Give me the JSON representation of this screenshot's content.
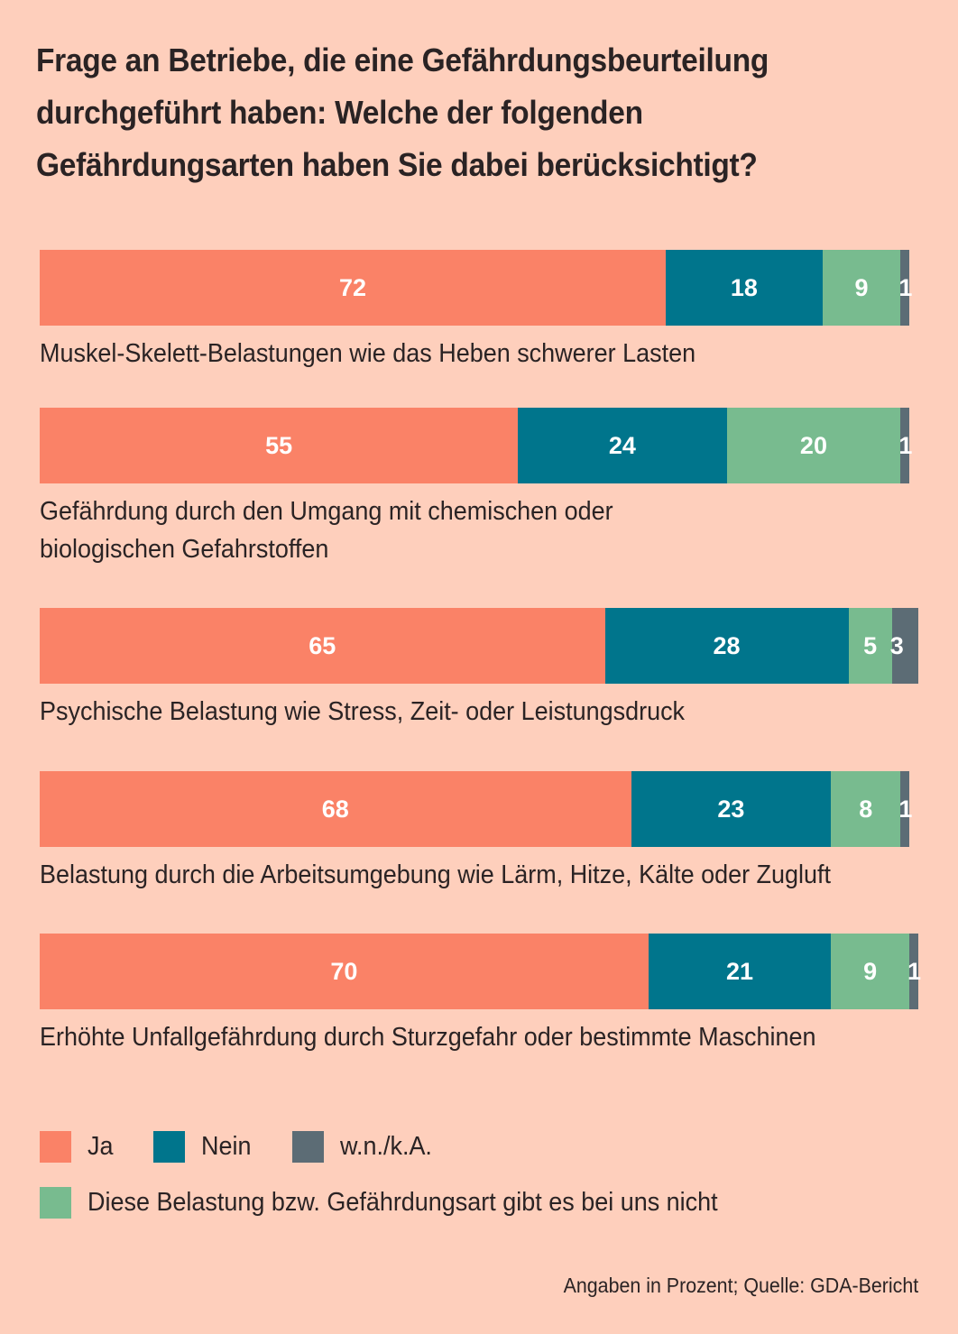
{
  "chart_data": {
    "type": "bar",
    "orientation": "horizontal",
    "stacked": true,
    "title": "Frage an Betriebe, die eine Gefährdungsbeurteilung durchgeführt haben: Welche der folgenden Gefährdungsarten haben Sie dabei berücksichtigt?",
    "title_lines": [
      "Frage an Betriebe, die eine Gefährdungsbeurteilung",
      "durchgeführt haben: Welche der folgenden",
      "Gefährdungsarten haben Sie dabei berücksichtigt?"
    ],
    "categories": [
      [
        "Muskel-Skelett-Belastungen wie das Heben schwerer Lasten"
      ],
      [
        "Gefährdung durch den Umgang mit chemischen oder",
        "biologischen Gefahrstoffen"
      ],
      [
        "Psychische Belastung wie Stress, Zeit- oder Leistungsdruck"
      ],
      [
        "Belastung durch die Arbeitsumgebung wie Lärm, Hitze, Kälte oder Zugluft"
      ],
      [
        "Erhöhte Unfallgefährdung durch Sturzgefahr oder bestimmte Maschinen"
      ]
    ],
    "series": [
      {
        "key": "ja",
        "name": "Ja",
        "color": "#fa8267",
        "values": [
          72,
          55,
          65,
          68,
          70
        ]
      },
      {
        "key": "nein",
        "name": "Nein",
        "color": "#00758c",
        "values": [
          18,
          24,
          28,
          23,
          21
        ]
      },
      {
        "key": "nicht",
        "name": "Diese Belastung bzw. Gefährdungsart gibt es bei uns nicht",
        "color": "#78bb8f",
        "values": [
          9,
          20,
          5,
          8,
          9
        ]
      },
      {
        "key": "wnka",
        "name": "w.n./k.A.",
        "color": "#5c6c75",
        "values": [
          1,
          1,
          3,
          1,
          1
        ]
      }
    ],
    "unit": "Prozent",
    "xlim": [
      0,
      101
    ],
    "grid": false,
    "legend_position": "bottom-left",
    "legend_rows": [
      [
        "ja",
        "nein",
        "wnka"
      ],
      [
        "nicht"
      ]
    ],
    "source": "Angaben in Prozent; Quelle: GDA-Bericht"
  }
}
